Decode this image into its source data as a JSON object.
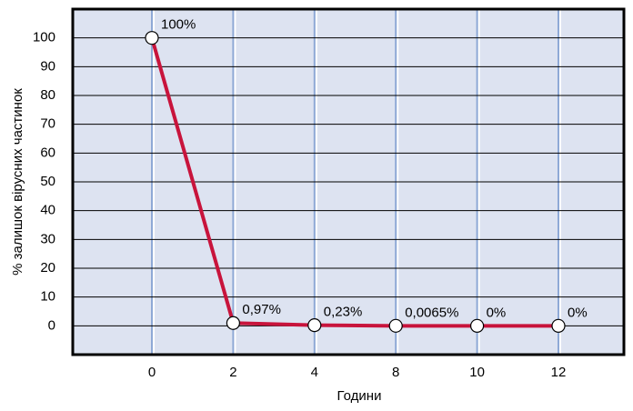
{
  "chart_data": {
    "type": "line",
    "x_label": "Години",
    "y_label": "% залишок вірусних частинок",
    "categories": [
      "0",
      "2",
      "4",
      "8",
      "10",
      "12"
    ],
    "series": [
      {
        "color": "#c8143c",
        "values": [
          100,
          0.97,
          0.23,
          0.0065,
          0,
          0
        ],
        "value_labels": [
          "100%",
          "0,97%",
          "0,23%",
          "0,0065%",
          "0%",
          "0%"
        ]
      }
    ],
    "ylim": [
      -10,
      110
    ],
    "yticks": [
      0,
      10,
      20,
      30,
      40,
      50,
      60,
      70,
      80,
      90,
      100
    ],
    "grid": true,
    "background": "#dde3f1",
    "vertical_grid_color": "#8ea9d6"
  }
}
